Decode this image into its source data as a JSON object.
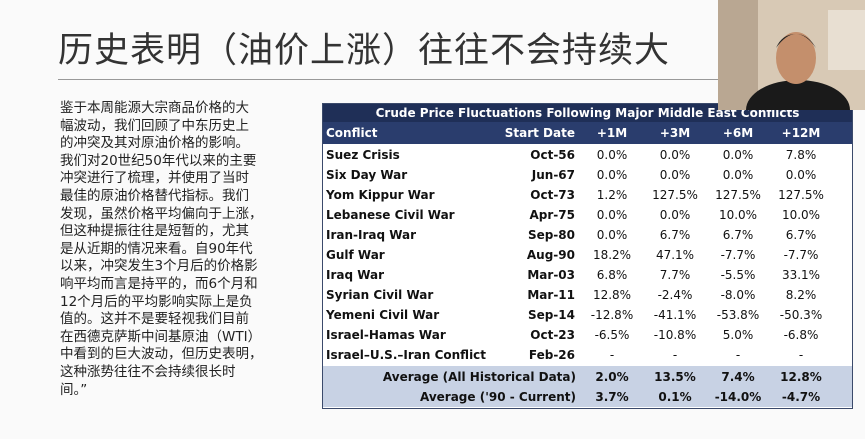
{
  "slide": {
    "title": "历史表明（油价上涨）往往不会持续大",
    "body_lines": [
      "鉴于本周能源大宗商品价格的大",
      "幅波动，我们回顾了中东历史上",
      "的冲突及其对原油价格的影响。",
      "我们对20世纪50年代以来的主要",
      "冲突进行了梳理，并使用了当时",
      "最佳的原油价格替代指标。我们",
      "发现，虽然价格平均偏向于上涨，",
      "但这种提振往往是短暂的，尤其",
      "是从近期的情况来看。自90年代",
      "以来，冲突发生3个月后的价格影",
      "响平均而言是持平的，而6个月和",
      "12个月后的平均影响实际上是负",
      "值的。这并不是要轻视我们目前",
      "在西德克萨斯中间基原油（WTI）",
      "中看到的巨大波动，但历史表明，",
      "这种涨势往往不会持续很长时",
      "间。”"
    ]
  },
  "table": {
    "title": "Crude Price Fluctuations Following Major Middle East Conflicts",
    "headers": [
      "Conflict",
      "Start Date",
      "+1M",
      "+3M",
      "+6M",
      "+12M"
    ],
    "rows": [
      [
        "Suez Crisis",
        "Oct-56",
        "0.0%",
        "0.0%",
        "0.0%",
        "7.8%"
      ],
      [
        "Six Day War",
        "Jun-67",
        "0.0%",
        "0.0%",
        "0.0%",
        "0.0%"
      ],
      [
        "Yom Kippur War",
        "Oct-73",
        "1.2%",
        "127.5%",
        "127.5%",
        "127.5%"
      ],
      [
        "Lebanese Civil War",
        "Apr-75",
        "0.0%",
        "0.0%",
        "10.0%",
        "10.0%"
      ],
      [
        "Iran-Iraq War",
        "Sep-80",
        "0.0%",
        "6.7%",
        "6.7%",
        "6.7%"
      ],
      [
        "Gulf War",
        "Aug-90",
        "18.2%",
        "47.1%",
        "-7.7%",
        "-7.7%"
      ],
      [
        "Iraq War",
        "Mar-03",
        "6.8%",
        "7.7%",
        "-5.5%",
        "33.1%"
      ],
      [
        "Syrian Civil War",
        "Mar-11",
        "12.8%",
        "-2.4%",
        "-8.0%",
        "8.2%"
      ],
      [
        "Yemeni Civil War",
        "Sep-14",
        "-12.8%",
        "-41.1%",
        "-53.8%",
        "-50.3%"
      ],
      [
        "Israel-Hamas War",
        "Oct-23",
        "-6.5%",
        "-10.8%",
        "5.0%",
        "-6.8%"
      ],
      [
        "Israel–U.S.–Iran Conflict",
        "Feb-26",
        "-",
        "-",
        "-",
        "-"
      ]
    ],
    "footer": [
      [
        "Average (All Historical Data)",
        "2.0%",
        "13.5%",
        "7.4%",
        "12.8%"
      ],
      [
        "Average ('90 - Current)",
        "3.7%",
        "0.1%",
        "-14.0%",
        "-4.7%"
      ]
    ]
  }
}
